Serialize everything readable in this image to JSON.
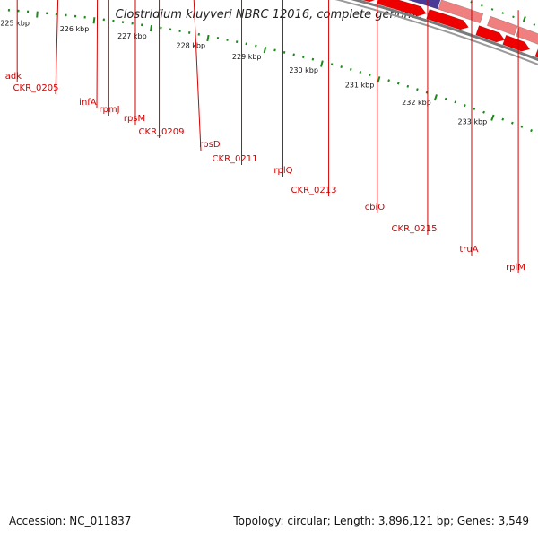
{
  "title": "Clostridium kluyveri NBRC 12016, complete genome",
  "footer": {
    "accession": "Accession: NC_011837",
    "topology": "Topology: circular; Length: 3,896,121 bp; Genes: 3,549"
  },
  "colors": {
    "cds_forward": "#f08080",
    "cds_reverse": "#ee0000",
    "adk": "#30b8e8",
    "rpsD": "#f08a00",
    "cbiO": "#4a3a98",
    "backbone": "#888888",
    "label": "#d40000",
    "tick": "#1a8a1a"
  },
  "gene_labels": [
    "adk",
    "CKR_0205",
    "infA",
    "rpmJ",
    "rpsM",
    "CKR_0209",
    "rpsD",
    "CKR_0211",
    "rplQ",
    "CKR_0213",
    "cbiO",
    "CKR_0215",
    "truA",
    "rplM"
  ],
  "kbp_labels": [
    "225 kbp",
    "226 kbp",
    "227 kbp",
    "228 kbp",
    "229 kbp",
    "230 kbp",
    "231 kbp",
    "232 kbp",
    "233 kbp"
  ]
}
